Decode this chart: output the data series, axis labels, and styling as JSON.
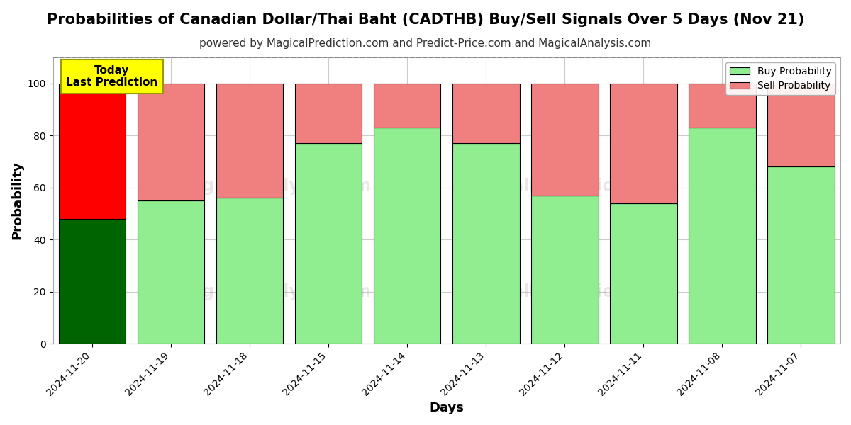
{
  "title": "Probabilities of Canadian Dollar/Thai Baht (CADTHB) Buy/Sell Signals Over 5 Days (Nov 21)",
  "subtitle": "powered by MagicalPrediction.com and Predict-Price.com and MagicalAnalysis.com",
  "xlabel": "Days",
  "ylabel": "Probability",
  "dates": [
    "2024-11-20",
    "2024-11-19",
    "2024-11-18",
    "2024-11-15",
    "2024-11-14",
    "2024-11-13",
    "2024-11-12",
    "2024-11-11",
    "2024-11-08",
    "2024-11-07"
  ],
  "buy_values": [
    48,
    55,
    56,
    77,
    83,
    77,
    57,
    54,
    83,
    68
  ],
  "sell_values": [
    52,
    45,
    44,
    23,
    17,
    23,
    43,
    46,
    17,
    32
  ],
  "today_bar_buy_color": "#006400",
  "today_bar_sell_color": "#FF0000",
  "other_bar_buy_color": "#90EE90",
  "other_bar_sell_color": "#F08080",
  "bar_edgecolor": "#000000",
  "legend_buy_color": "#90EE90",
  "legend_sell_color": "#F08080",
  "ylim": [
    0,
    110
  ],
  "yticks": [
    0,
    20,
    40,
    60,
    80,
    100
  ],
  "dashed_line_y": 110,
  "annotation_text": "Today\nLast Prediction",
  "annotation_bg": "#FFFF00",
  "grid_color": "#CCCCCC",
  "background_color": "#FFFFFF",
  "title_fontsize": 15,
  "subtitle_fontsize": 11,
  "axis_label_fontsize": 13,
  "tick_fontsize": 10,
  "bar_width": 0.85
}
